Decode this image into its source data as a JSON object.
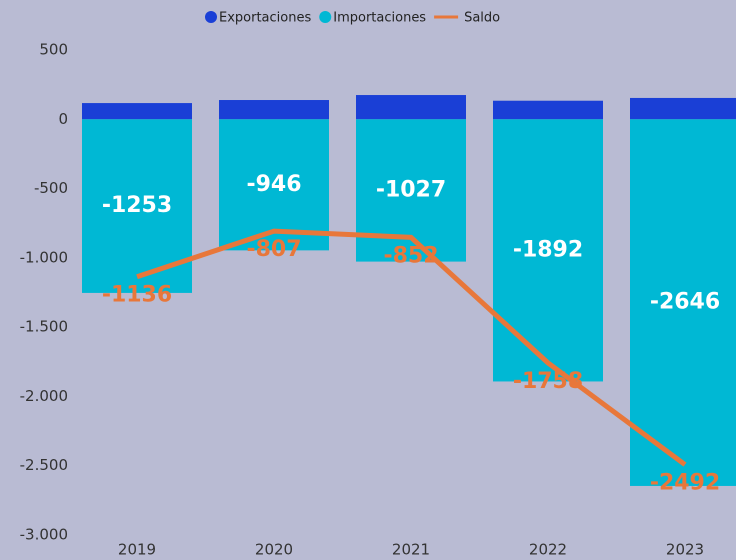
{
  "chart_data": {
    "type": "bar",
    "categories": [
      "2019",
      "2020",
      "2021",
      "2022",
      "2023"
    ],
    "series": [
      {
        "name": "Exportaciones",
        "color": "#1a3fd6",
        "type": "bar",
        "values": [
          117,
          139,
          175,
          134,
          154
        ]
      },
      {
        "name": "Importaciones",
        "color": "#00b8d4",
        "type": "bar",
        "values": [
          -1253,
          -946,
          -1027,
          -1892,
          -2646
        ]
      },
      {
        "name": "Saldo",
        "color": "#e8773a",
        "type": "line",
        "values": [
          -1136,
          -807,
          -852,
          -1758,
          -2492
        ]
      }
    ],
    "ylim": [
      -3000,
      500
    ],
    "yticks": [
      {
        "value": -3000,
        "label": "-3.000"
      },
      {
        "value": -2500,
        "label": "-2.500"
      },
      {
        "value": -2000,
        "label": "-2.000"
      },
      {
        "value": -1500,
        "label": "-1.500"
      },
      {
        "value": -1000,
        "label": "-1.000"
      },
      -500,
      0,
      500
    ],
    "grid": false
  }
}
